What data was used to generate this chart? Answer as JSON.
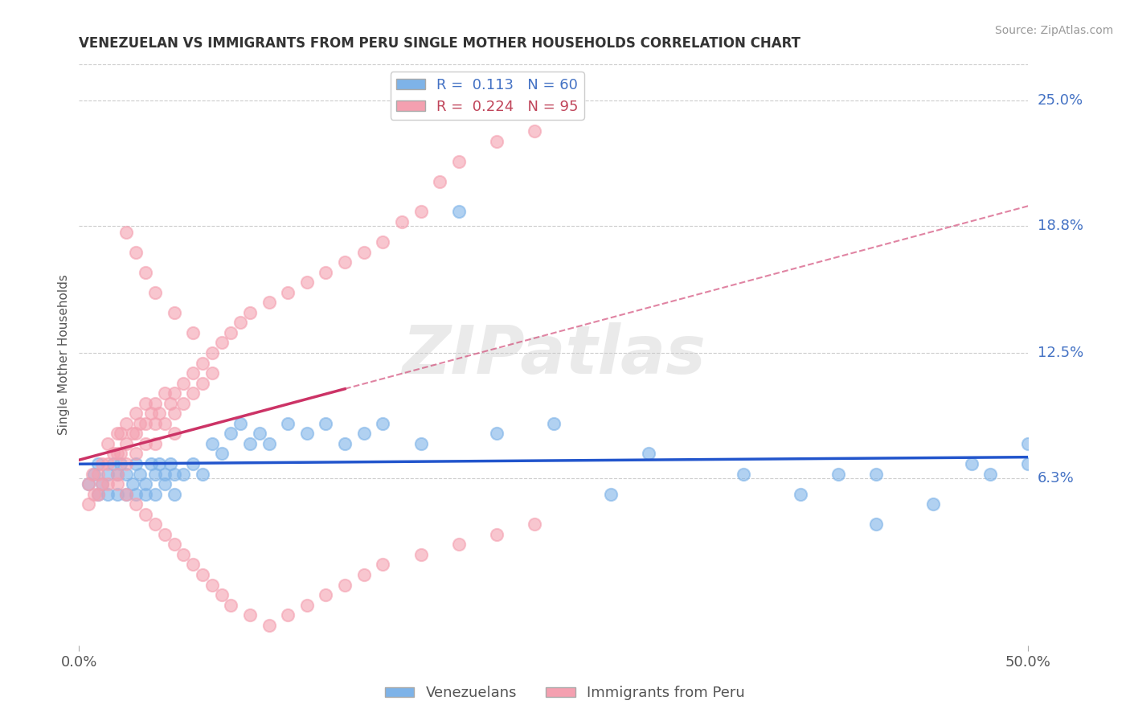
{
  "title": "VENEZUELAN VS IMMIGRANTS FROM PERU SINGLE MOTHER HOUSEHOLDS CORRELATION CHART",
  "source": "Source: ZipAtlas.com",
  "ylabel": "Single Mother Households",
  "ytick_labels": [
    "6.3%",
    "12.5%",
    "18.8%",
    "25.0%"
  ],
  "ytick_values": [
    0.063,
    0.125,
    0.188,
    0.25
  ],
  "xlim": [
    0.0,
    0.5
  ],
  "ylim": [
    -0.02,
    0.268
  ],
  "color_venezuelan": "#7EB3E8",
  "color_peru": "#F4A0B0",
  "trendline_venezuelan_color": "#2255CC",
  "trendline_peru_solid_color": "#CC3366",
  "trendline_peru_dashed_color": "#CC3366",
  "background_color": "#FFFFFF",
  "watermark": "ZIPatlas",
  "venezuelan_x": [
    0.005,
    0.008,
    0.01,
    0.01,
    0.012,
    0.015,
    0.015,
    0.018,
    0.02,
    0.02,
    0.022,
    0.025,
    0.025,
    0.028,
    0.03,
    0.03,
    0.032,
    0.035,
    0.035,
    0.038,
    0.04,
    0.04,
    0.042,
    0.045,
    0.045,
    0.048,
    0.05,
    0.05,
    0.055,
    0.06,
    0.065,
    0.07,
    0.075,
    0.08,
    0.085,
    0.09,
    0.095,
    0.1,
    0.11,
    0.12,
    0.13,
    0.14,
    0.15,
    0.16,
    0.18,
    0.2,
    0.22,
    0.25,
    0.28,
    0.3,
    0.35,
    0.38,
    0.4,
    0.42,
    0.45,
    0.48,
    0.5,
    0.5,
    0.42,
    0.47
  ],
  "venezuelan_y": [
    0.06,
    0.065,
    0.055,
    0.07,
    0.06,
    0.065,
    0.055,
    0.07,
    0.065,
    0.055,
    0.07,
    0.065,
    0.055,
    0.06,
    0.07,
    0.055,
    0.065,
    0.06,
    0.055,
    0.07,
    0.065,
    0.055,
    0.07,
    0.065,
    0.06,
    0.07,
    0.065,
    0.055,
    0.065,
    0.07,
    0.065,
    0.08,
    0.075,
    0.085,
    0.09,
    0.08,
    0.085,
    0.08,
    0.09,
    0.085,
    0.09,
    0.08,
    0.085,
    0.09,
    0.08,
    0.195,
    0.085,
    0.09,
    0.055,
    0.075,
    0.065,
    0.055,
    0.065,
    0.04,
    0.05,
    0.065,
    0.07,
    0.08,
    0.065,
    0.07
  ],
  "peru_x": [
    0.005,
    0.005,
    0.007,
    0.008,
    0.01,
    0.01,
    0.012,
    0.012,
    0.015,
    0.015,
    0.015,
    0.018,
    0.02,
    0.02,
    0.02,
    0.022,
    0.022,
    0.025,
    0.025,
    0.025,
    0.028,
    0.03,
    0.03,
    0.03,
    0.032,
    0.035,
    0.035,
    0.035,
    0.038,
    0.04,
    0.04,
    0.04,
    0.042,
    0.045,
    0.045,
    0.048,
    0.05,
    0.05,
    0.05,
    0.055,
    0.055,
    0.06,
    0.06,
    0.065,
    0.065,
    0.07,
    0.07,
    0.075,
    0.08,
    0.085,
    0.09,
    0.1,
    0.11,
    0.12,
    0.13,
    0.14,
    0.15,
    0.16,
    0.17,
    0.18,
    0.19,
    0.2,
    0.22,
    0.24,
    0.02,
    0.025,
    0.03,
    0.035,
    0.04,
    0.045,
    0.05,
    0.055,
    0.06,
    0.065,
    0.07,
    0.075,
    0.08,
    0.09,
    0.1,
    0.11,
    0.12,
    0.13,
    0.14,
    0.15,
    0.16,
    0.18,
    0.2,
    0.22,
    0.24,
    0.025,
    0.03,
    0.035,
    0.04,
    0.05,
    0.06
  ],
  "peru_y": [
    0.06,
    0.05,
    0.065,
    0.055,
    0.065,
    0.055,
    0.07,
    0.06,
    0.08,
    0.07,
    0.06,
    0.075,
    0.085,
    0.075,
    0.065,
    0.085,
    0.075,
    0.09,
    0.08,
    0.07,
    0.085,
    0.095,
    0.085,
    0.075,
    0.09,
    0.1,
    0.09,
    0.08,
    0.095,
    0.1,
    0.09,
    0.08,
    0.095,
    0.105,
    0.09,
    0.1,
    0.105,
    0.095,
    0.085,
    0.11,
    0.1,
    0.115,
    0.105,
    0.12,
    0.11,
    0.125,
    0.115,
    0.13,
    0.135,
    0.14,
    0.145,
    0.15,
    0.155,
    0.16,
    0.165,
    0.17,
    0.175,
    0.18,
    0.19,
    0.195,
    0.21,
    0.22,
    0.23,
    0.235,
    0.06,
    0.055,
    0.05,
    0.045,
    0.04,
    0.035,
    0.03,
    0.025,
    0.02,
    0.015,
    0.01,
    0.005,
    0.0,
    -0.005,
    -0.01,
    -0.005,
    0.0,
    0.005,
    0.01,
    0.015,
    0.02,
    0.025,
    0.03,
    0.035,
    0.04,
    0.185,
    0.175,
    0.165,
    0.155,
    0.145,
    0.135
  ]
}
